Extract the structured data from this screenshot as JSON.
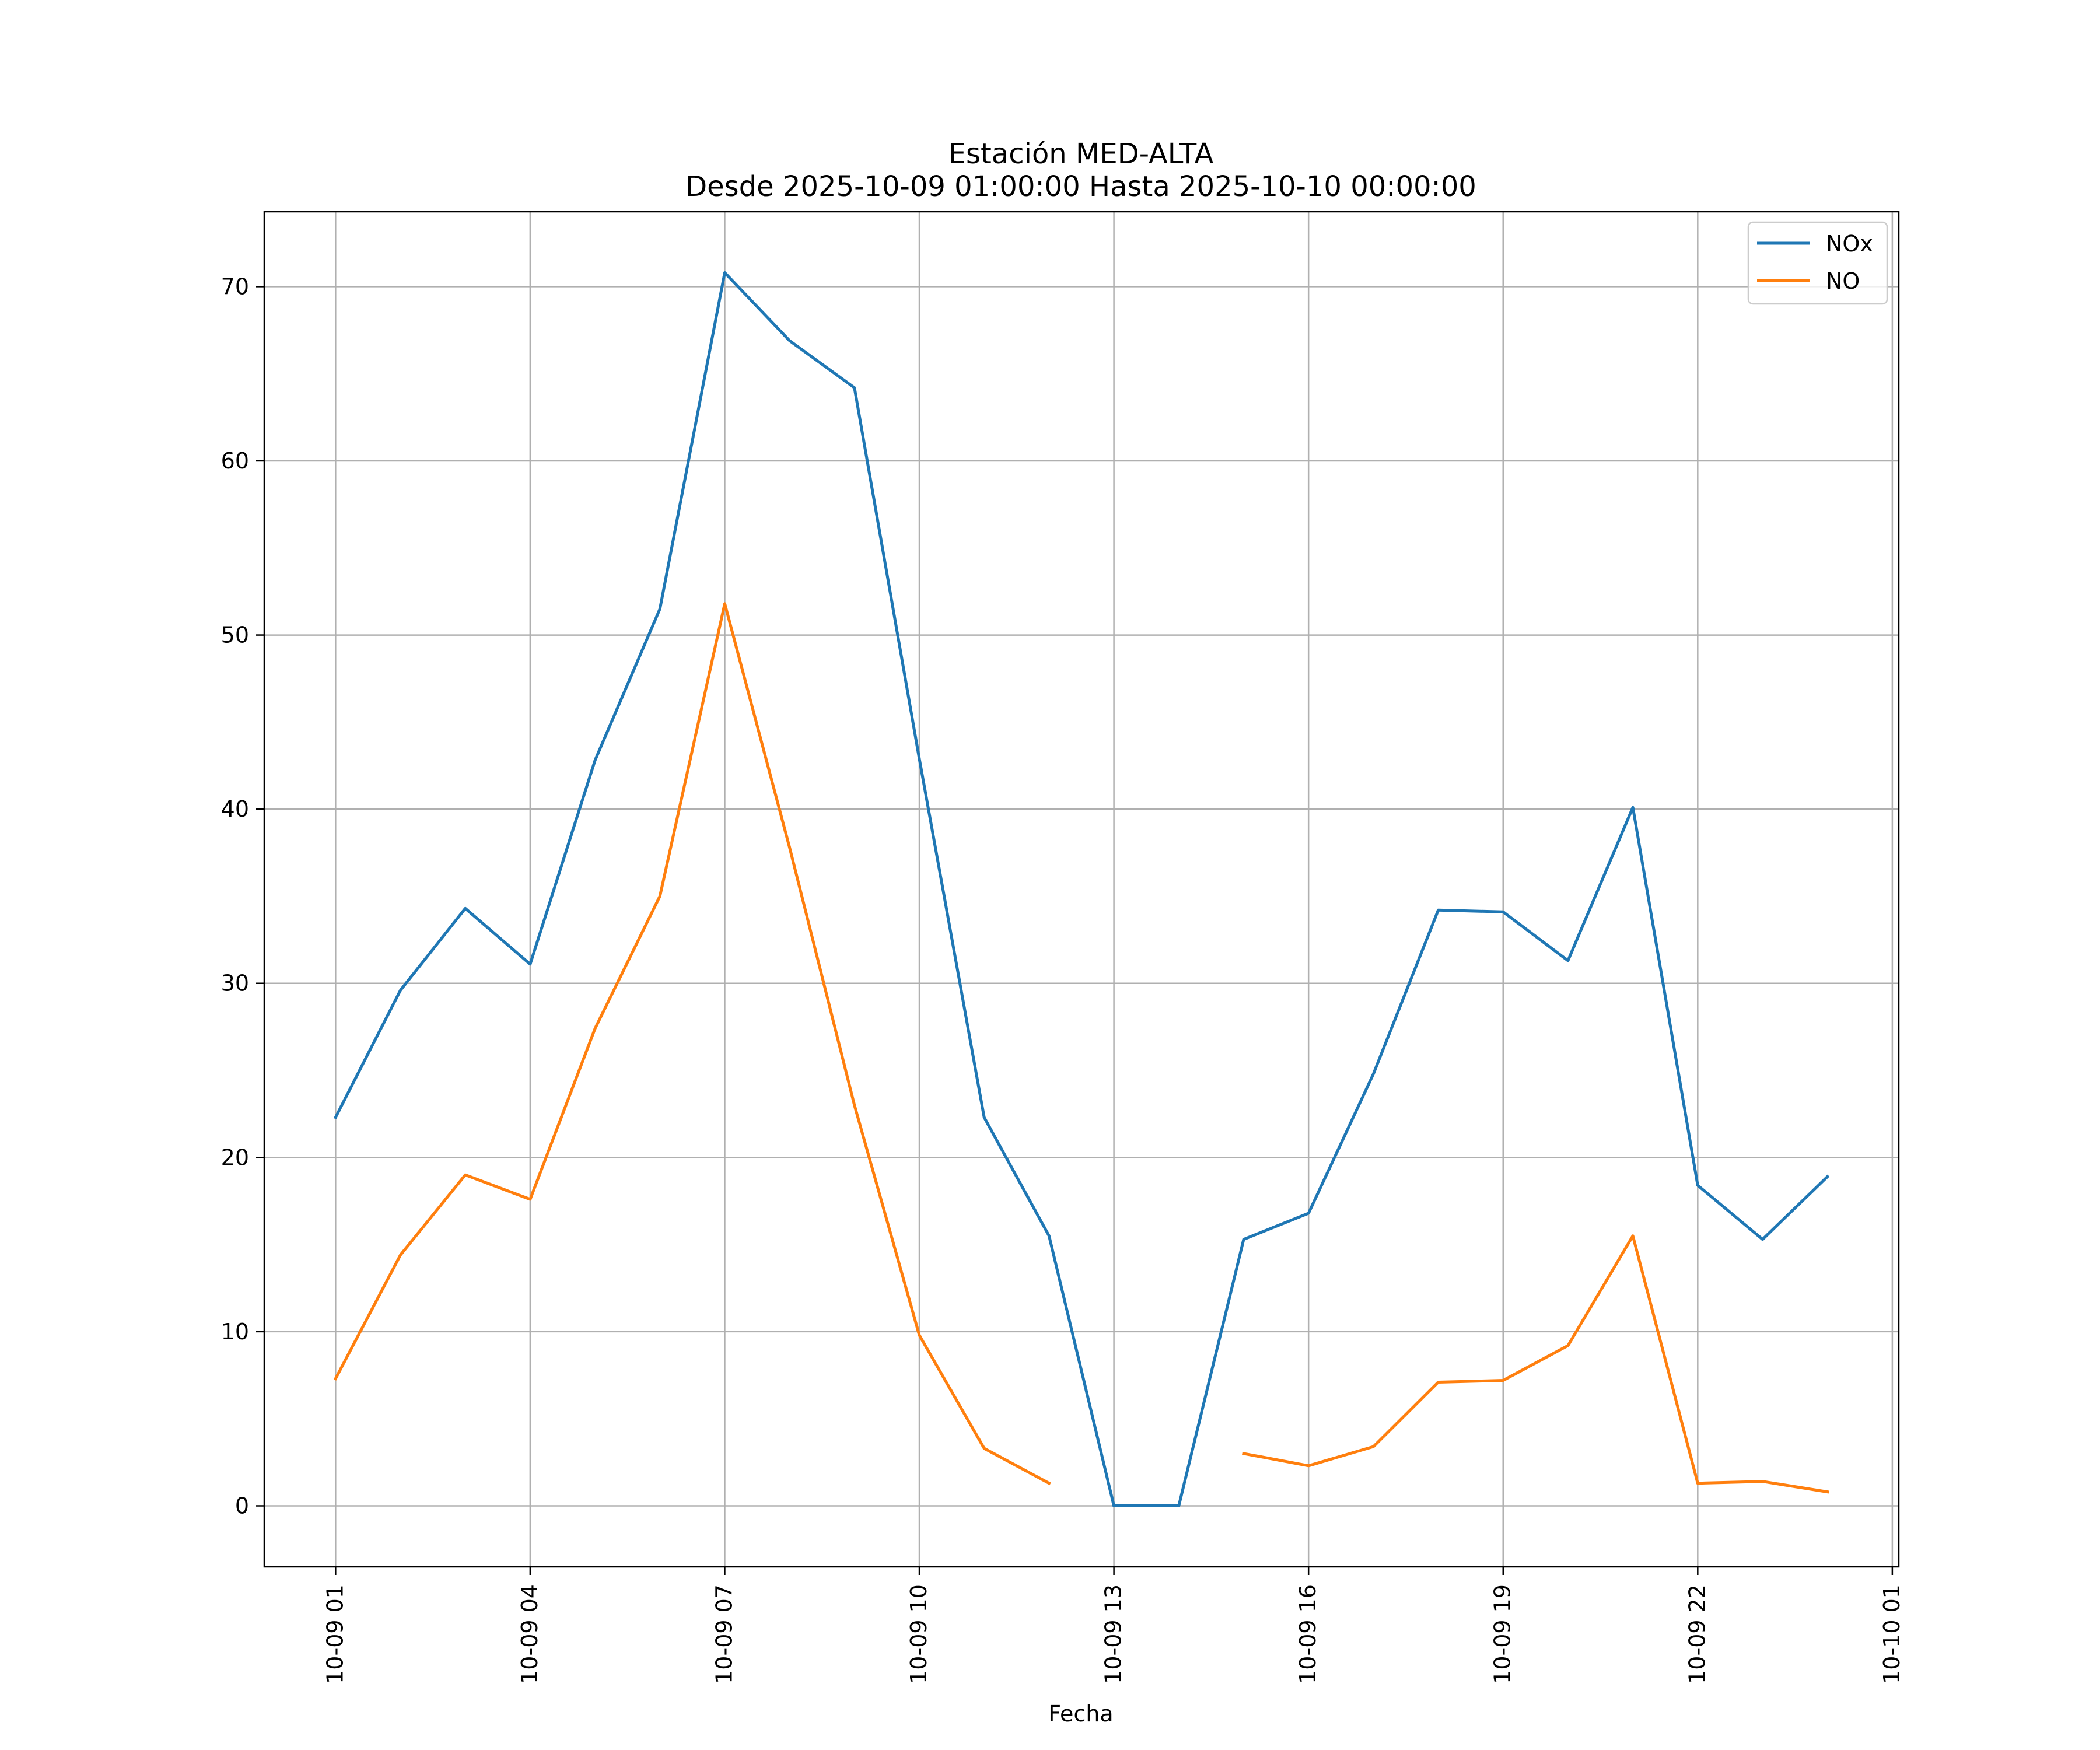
{
  "chart_data": {
    "type": "line",
    "title_lines": [
      "Estación MED-ALTA",
      "Desde 2025-10-09 01:00:00 Hasta 2025-10-10 00:00:00"
    ],
    "xlabel": "Fecha",
    "ylabel": "",
    "x_hours": [
      1,
      2,
      3,
      4,
      5,
      6,
      7,
      8,
      9,
      10,
      11,
      12,
      13,
      14,
      15,
      16,
      17,
      18,
      19,
      20,
      21,
      22,
      23,
      24
    ],
    "x_ticks": [
      {
        "hour": 1,
        "label": "10-09 01"
      },
      {
        "hour": 4,
        "label": "10-09 04"
      },
      {
        "hour": 7,
        "label": "10-09 07"
      },
      {
        "hour": 10,
        "label": "10-09 10"
      },
      {
        "hour": 13,
        "label": "10-09 13"
      },
      {
        "hour": 16,
        "label": "10-09 16"
      },
      {
        "hour": 19,
        "label": "10-09 19"
      },
      {
        "hour": 22,
        "label": "10-09 22"
      },
      {
        "hour": 25,
        "label": "10-10 01"
      }
    ],
    "xlim": [
      -0.1,
      25.1
    ],
    "ylim": [
      -3.5,
      74.3
    ],
    "y_ticks": [
      0,
      10,
      20,
      30,
      40,
      50,
      60,
      70
    ],
    "grid": true,
    "legend_position": "top-right",
    "series": [
      {
        "name": "NOx",
        "color": "#1f77b4",
        "values": [
          22.3,
          29.6,
          34.3,
          31.1,
          42.8,
          51.5,
          70.8,
          66.9,
          64.2,
          42.9,
          22.3,
          15.5,
          0.0,
          0.0,
          15.3,
          16.8,
          24.8,
          34.2,
          34.1,
          31.3,
          40.1,
          18.4,
          15.3,
          18.9
        ]
      },
      {
        "name": "NO",
        "color": "#ff7f0e",
        "values": [
          7.3,
          14.4,
          19.0,
          17.6,
          27.4,
          35.0,
          51.8,
          37.8,
          23.0,
          9.8,
          3.3,
          1.3,
          null,
          null,
          3.0,
          2.3,
          3.4,
          7.1,
          7.2,
          9.2,
          15.5,
          1.3,
          1.4,
          0.8
        ]
      }
    ]
  }
}
